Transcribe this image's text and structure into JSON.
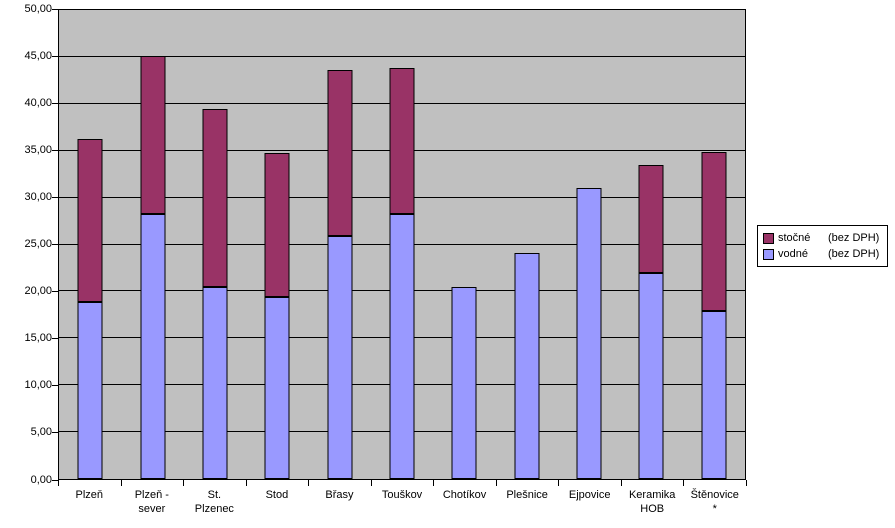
{
  "chart_data": {
    "type": "bar",
    "stacked": true,
    "title": "",
    "categories": [
      "Plzeň",
      "Plzeň -\nsever",
      "St.\nPlzenec",
      "Stod",
      "Břasy",
      "Touškov",
      "Chotíkov",
      "Plešnice",
      "Ejpovice",
      "Keramika\nHOB",
      "Štěnovice\n*"
    ],
    "series": [
      {
        "key": "vodne",
        "name": "vodné (bez DPH)",
        "color": "#9999FF",
        "values": [
          18.9,
          28.3,
          20.5,
          19.4,
          25.9,
          28.2,
          20.5,
          24.1,
          31.0,
          22.0,
          17.9
        ]
      },
      {
        "key": "stocne",
        "name": "stočné (bez DPH)",
        "color": "#993366",
        "values": [
          17.4,
          16.8,
          18.9,
          15.4,
          17.7,
          15.6,
          0,
          0,
          0,
          11.5,
          17.0
        ]
      }
    ],
    "totals": [
      36.3,
      45.1,
      39.4,
      34.8,
      43.6,
      43.8,
      20.5,
      24.1,
      31.0,
      33.5,
      34.9
    ],
    "y_axis": {
      "min": 0,
      "max": 50,
      "step": 5,
      "grid": true,
      "tick_labels": [
        "0,00",
        "5,00",
        "10,00",
        "15,00",
        "20,00",
        "25,00",
        "30,00",
        "35,00",
        "40,00",
        "45,00",
        "50,00"
      ]
    },
    "legend": {
      "position": "right",
      "entries": [
        {
          "key": "stocne",
          "label": "stočné",
          "note": "(bez DPH)",
          "color": "#993366"
        },
        {
          "key": "vodne",
          "label": "vodné",
          "note": "(bez DPH)",
          "color": "#9999FF"
        }
      ]
    },
    "colors": {
      "plot_bg": "#C0C0C0",
      "page_bg": "#FFFFFF",
      "grid": "#000000",
      "text": "#000000"
    }
  }
}
